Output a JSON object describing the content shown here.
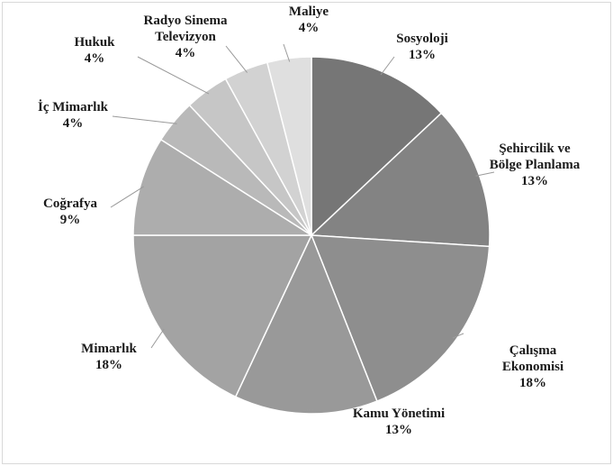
{
  "chart_data": {
    "type": "pie",
    "title": "",
    "slices": [
      {
        "label": "Sosyoloji",
        "value": 13,
        "value_label": "13%",
        "color": "#767676"
      },
      {
        "label": "Şehircilik ve Bölge Planlama",
        "value": 13,
        "value_label": "13%",
        "color": "#838383"
      },
      {
        "label": "Çalışma Ekonomisi",
        "value": 18,
        "value_label": "18%",
        "color": "#8e8e8e"
      },
      {
        "label": "Kamu Yönetimi",
        "value": 13,
        "value_label": "13%",
        "color": "#999999"
      },
      {
        "label": "Mimarlık",
        "value": 18,
        "value_label": "18%",
        "color": "#a3a3a3"
      },
      {
        "label": "Coğrafya",
        "value": 9,
        "value_label": "9%",
        "color": "#adadad"
      },
      {
        "label": "İç Mimarlık",
        "value": 4,
        "value_label": "4%",
        "color": "#b9b9b9"
      },
      {
        "label": "Hukuk",
        "value": 4,
        "value_label": "4%",
        "color": "#c6c6c6"
      },
      {
        "label": "Radyo Sinema Televizyon",
        "value": 4,
        "value_label": "4%",
        "color": "#d2d2d2"
      },
      {
        "label": "Maliye",
        "value": 4,
        "value_label": "4%",
        "color": "#dfdfdf"
      }
    ],
    "label_lines": [
      [
        "Sosyoloji",
        "13%"
      ],
      [
        "Şehircilik ve",
        "Bölge Planlama",
        "13%"
      ],
      [
        "Çalışma",
        "Ekonomisi",
        "18%"
      ],
      [
        "Kamu Yönetimi",
        "13%"
      ],
      [
        "Mimarlık",
        "18%"
      ],
      [
        "Coğrafya",
        "9%"
      ],
      [
        "İç Mimarlık",
        "4%"
      ],
      [
        "Hukuk",
        "4%"
      ],
      [
        "Radyo Sinema",
        "Televizyon",
        "4%"
      ],
      [
        "Maliye",
        "4%"
      ]
    ],
    "legend": "none"
  }
}
